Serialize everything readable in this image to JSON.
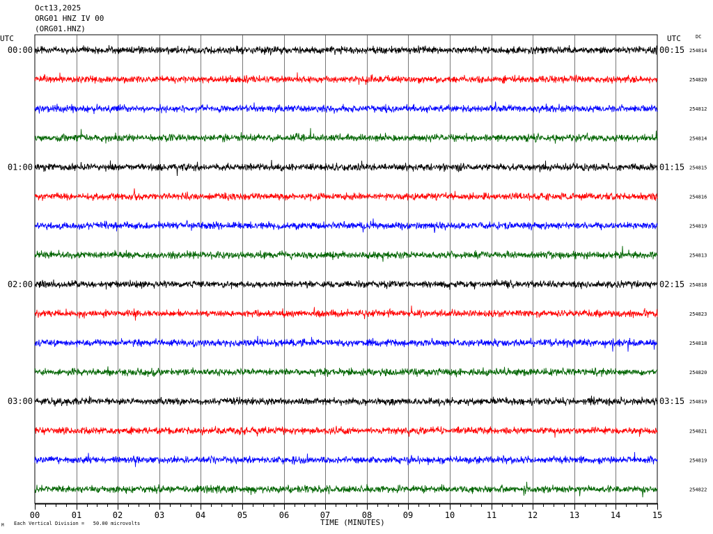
{
  "header": {
    "date": "Oct13,2025",
    "station": "ORG01 HNZ IV 00",
    "channel": "(ORG01.HNZ)",
    "utc_left": "UTC",
    "utc_right": "UTC",
    "dc_label": "DC"
  },
  "footer": {
    "scale_note": "Each Vertical Division =   50.00 microvolts",
    "scale_mark": "M"
  },
  "colors": {
    "trace_cycle": [
      "#000000",
      "#ff0000",
      "#0000ff",
      "#006400"
    ],
    "grid": "#000000"
  },
  "chart_data": {
    "type": "line",
    "title": "ORG01 HNZ IV 00",
    "xlabel": "TIME (MINUTES)",
    "ylabel": "",
    "xlim": [
      0,
      15
    ],
    "x_ticks": [
      "00",
      "01",
      "02",
      "03",
      "04",
      "05",
      "06",
      "07",
      "08",
      "09",
      "10",
      "11",
      "12",
      "13",
      "14",
      "15"
    ],
    "grid": true,
    "trace_minutes": 15,
    "left_time_labels": [
      "00:00",
      "01:00",
      "02:00",
      "03:00"
    ],
    "right_time_labels": [
      "00:15",
      "01:15",
      "02:15",
      "03:15"
    ],
    "series": [
      {
        "dc": "254814"
      },
      {
        "dc": "254820"
      },
      {
        "dc": "254812"
      },
      {
        "dc": "254814"
      },
      {
        "dc": "254815"
      },
      {
        "dc": "254816"
      },
      {
        "dc": "254819"
      },
      {
        "dc": "254813"
      },
      {
        "dc": "254818"
      },
      {
        "dc": "254823"
      },
      {
        "dc": "254818"
      },
      {
        "dc": "254820"
      },
      {
        "dc": "254819"
      },
      {
        "dc": "254821"
      },
      {
        "dc": "254819"
      },
      {
        "dc": "254822"
      }
    ]
  }
}
